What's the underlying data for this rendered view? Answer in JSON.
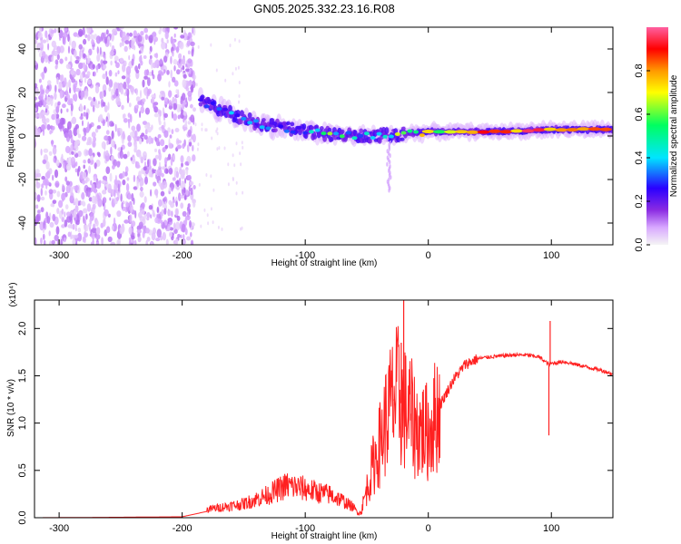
{
  "title": "GN05.2025.332.23.16.R08",
  "chart_data": [
    {
      "type": "heatmap",
      "name": "spectrogram",
      "xlabel": "Height of straight line (km)",
      "ylabel": "Frequency (Hz)",
      "xlim": [
        -320,
        150
      ],
      "ylim": [
        -50,
        50
      ],
      "xticks": [
        -300,
        -200,
        -100,
        0,
        100
      ],
      "yticks": [
        -40,
        -20,
        0,
        20,
        40
      ],
      "colorbar": {
        "label": "Normalized spectral amplitude",
        "range": [
          0,
          1
        ],
        "ticks": [
          0.0,
          0.2,
          0.4,
          0.6,
          0.8
        ],
        "tick_labels": [
          "0.0",
          "0.2",
          "0.4",
          "0.6",
          "0.8"
        ],
        "colormap": [
          "#f5f5f5",
          "#d8a8ff",
          "#8a2be2",
          "#2a00ff",
          "#00e5ff",
          "#00ff60",
          "#ffff00",
          "#ff9900",
          "#ff0000",
          "#ff60a0"
        ]
      },
      "ridge": {
        "heights": [
          -185,
          -160,
          -140,
          -120,
          -100,
          -80,
          -60,
          -40,
          -20,
          0,
          20,
          60,
          100,
          150
        ],
        "frequency": [
          16,
          10,
          6,
          4,
          2,
          1,
          0,
          0,
          1,
          2,
          2,
          2,
          3,
          3
        ],
        "amplitude": [
          0.35,
          0.45,
          0.45,
          0.4,
          0.45,
          0.6,
          0.5,
          0.55,
          0.65,
          0.75,
          0.85,
          0.95,
          0.9,
          0.85
        ]
      },
      "noise_region_km": [
        -320,
        -190
      ]
    },
    {
      "type": "line",
      "name": "snr",
      "xlabel": "Height of straight line (km)",
      "ylabel": "SNR (10 * v/v)",
      "multiplier": "(x10⁴)",
      "xlim": [
        -320,
        150
      ],
      "ylim": [
        0,
        2.3
      ],
      "xticks": [
        -300,
        -200,
        -100,
        0,
        100
      ],
      "yticks": [
        0.0,
        0.5,
        1.0,
        1.5,
        2.0
      ],
      "ytick_labels": [
        "0.0",
        "0.5",
        "1.0",
        "1.5",
        "2.0"
      ],
      "color": "#ff2020",
      "series": [
        {
          "name": "SNR",
          "x": [
            -320,
            -250,
            -200,
            -175,
            -150,
            -130,
            -115,
            -100,
            -90,
            -80,
            -70,
            -55,
            -50,
            -45,
            -40,
            -35,
            -30,
            -25,
            -20,
            -15,
            -10,
            0,
            10,
            20,
            30,
            40,
            50,
            60,
            70,
            80,
            90,
            95,
            98,
            100,
            110,
            120,
            130,
            140,
            150
          ],
          "y": [
            0.0,
            0.005,
            0.01,
            0.08,
            0.12,
            0.2,
            0.28,
            0.25,
            0.22,
            0.2,
            0.15,
            0.05,
            0.3,
            0.55,
            0.75,
            1.0,
            1.2,
            1.3,
            1.15,
            1.1,
            0.95,
            0.9,
            1.2,
            1.45,
            1.62,
            1.68,
            1.7,
            1.71,
            1.72,
            1.72,
            1.7,
            1.65,
            1.62,
            1.63,
            1.65,
            1.62,
            1.59,
            1.56,
            1.52
          ]
        }
      ],
      "spikes": [
        {
          "x": -20,
          "y": 2.3
        },
        {
          "x": -22,
          "y": 1.85
        },
        {
          "x": -28,
          "y": 1.25
        },
        {
          "x": 99,
          "y": 2.08
        },
        {
          "x": 98,
          "y": 0.87
        }
      ]
    }
  ]
}
